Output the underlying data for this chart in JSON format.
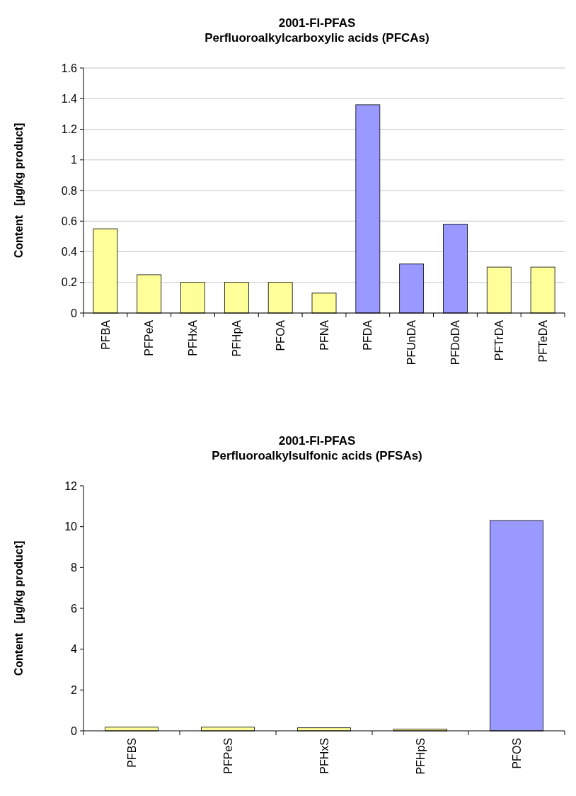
{
  "chart_data": [
    {
      "type": "bar",
      "title": "2001-FI-PFAS\nPerfluoroalkylcarboxylic acids (PFCAs)",
      "ylabel": "Content   [µg/kg product]",
      "categories": [
        "PFBA",
        "PFPeA",
        "PFHxA",
        "PFHpA",
        "PFOA",
        "PFNA",
        "PFDA",
        "PFUnDA",
        "PFDoDA",
        "PFTrDA",
        "PFTeDA"
      ],
      "values": [
        0.55,
        0.25,
        0.2,
        0.2,
        0.2,
        0.13,
        1.36,
        0.32,
        0.58,
        0.3,
        0.3
      ],
      "colors": [
        "#ffff99",
        "#ffff99",
        "#ffff99",
        "#ffff99",
        "#ffff99",
        "#ffff99",
        "#9999ff",
        "#9999ff",
        "#9999ff",
        "#ffff99",
        "#ffff99"
      ],
      "ylim": [
        0,
        1.6
      ],
      "yticks": [
        0,
        0.2,
        0.4,
        0.6,
        0.8,
        1,
        1.2,
        1.4,
        1.6
      ],
      "grid": "y"
    },
    {
      "type": "bar",
      "title": "2001-FI-PFAS\nPerfluoroalkylsulfonic acids (PFSAs)",
      "ylabel": "Content   [µg/kg product]",
      "categories": [
        "PFBS",
        "PFPeS",
        "PFHxS",
        "PFHpS",
        "PFOS"
      ],
      "values": [
        0.18,
        0.18,
        0.15,
        0.09,
        10.3
      ],
      "colors": [
        "#ffff99",
        "#ffff99",
        "#ffff99",
        "#ffff99",
        "#9999ff"
      ],
      "ylim": [
        0,
        12
      ],
      "yticks": [
        0,
        2,
        4,
        6,
        8,
        10,
        12
      ],
      "grid": false
    }
  ]
}
